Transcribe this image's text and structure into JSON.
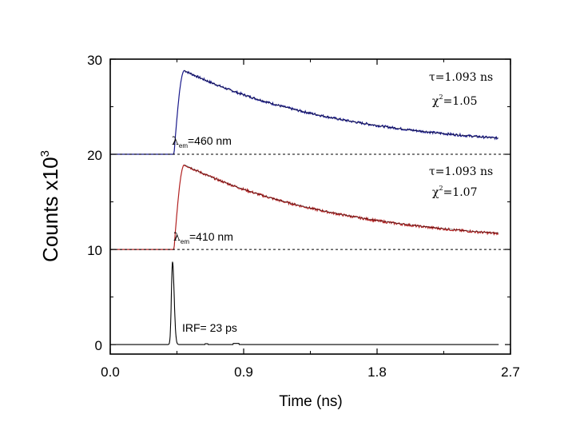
{
  "chart_data": {
    "type": "line",
    "xlabel": "Time (ns)",
    "ylabel": {
      "text": "Counts x10",
      "superscript": "3"
    },
    "xlim": [
      0,
      2.7
    ],
    "ylim": [
      -1,
      30
    ],
    "x_ticks": [
      "0.0",
      "0.9",
      "1.8",
      "2.7"
    ],
    "y_ticks": [
      "0",
      "10",
      "20",
      "30"
    ],
    "grid": false,
    "baselines": [
      10,
      20
    ],
    "series": [
      {
        "color": "#1a1a8c",
        "offset": 20,
        "rise_time": 0.43,
        "peak": 8.8,
        "tau": 1.093,
        "fit_color": "#000000",
        "baseline_label": {
          "prefix": "λ",
          "subscript": "em",
          "suffix": "=460 nm"
        },
        "tau_label": "τ=1.093 ns",
        "chi_label": {
          "prefix": "χ",
          "superscript": "2",
          "suffix": "=1.05"
        }
      },
      {
        "color": "#b22222",
        "offset": 10,
        "rise_time": 0.43,
        "peak": 8.9,
        "tau": 1.093,
        "fit_color": "#000000",
        "baseline_label": {
          "prefix": "λ",
          "subscript": "em",
          "suffix": "=410 nm"
        },
        "tau_label": "τ=1.093 ns",
        "chi_label": {
          "prefix": "χ",
          "superscript": "2",
          "suffix": "=1.07"
        }
      },
      {
        "color": "#000000",
        "offset": 0,
        "peak_time": 0.42,
        "peak": 8.7,
        "label": "IRF= 23 ps"
      }
    ]
  }
}
